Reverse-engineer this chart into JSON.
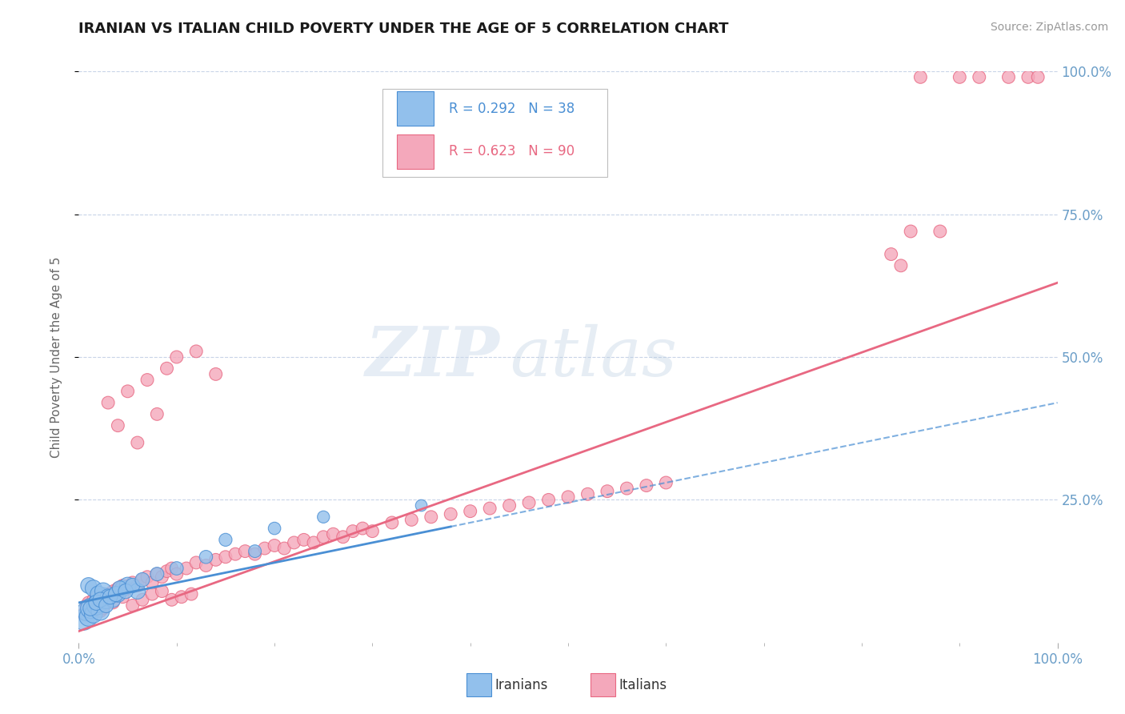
{
  "title": "IRANIAN VS ITALIAN CHILD POVERTY UNDER THE AGE OF 5 CORRELATION CHART",
  "source": "Source: ZipAtlas.com",
  "ylabel": "Child Poverty Under the Age of 5",
  "xlim": [
    0,
    1
  ],
  "ylim": [
    0,
    1
  ],
  "iranian_color": "#92C0EC",
  "italian_color": "#F4A8BB",
  "trendline_iranian_color": "#4A8FD4",
  "trendline_italian_color": "#E86882",
  "r_iranian": 0.292,
  "n_iranian": 38,
  "r_italian": 0.623,
  "n_italian": 90,
  "background_color": "#ffffff",
  "grid_color": "#c8d4e8",
  "tick_color": "#6B9EC8",
  "iranian_x": [
    0.005,
    0.008,
    0.01,
    0.012,
    0.015,
    0.018,
    0.02,
    0.022,
    0.025,
    0.028,
    0.01,
    0.015,
    0.02,
    0.025,
    0.03,
    0.035,
    0.04,
    0.045,
    0.05,
    0.06,
    0.012,
    0.018,
    0.022,
    0.028,
    0.032,
    0.038,
    0.042,
    0.048,
    0.055,
    0.065,
    0.08,
    0.1,
    0.13,
    0.15,
    0.18,
    0.2,
    0.25,
    0.35
  ],
  "iranian_y": [
    0.04,
    0.055,
    0.045,
    0.06,
    0.05,
    0.065,
    0.07,
    0.055,
    0.08,
    0.075,
    0.1,
    0.095,
    0.085,
    0.09,
    0.08,
    0.075,
    0.085,
    0.095,
    0.1,
    0.09,
    0.06,
    0.07,
    0.075,
    0.065,
    0.08,
    0.085,
    0.095,
    0.09,
    0.1,
    0.11,
    0.12,
    0.13,
    0.15,
    0.18,
    0.16,
    0.2,
    0.22,
    0.24
  ],
  "iranian_size": [
    350,
    300,
    280,
    320,
    260,
    290,
    310,
    270,
    280,
    260,
    200,
    220,
    210,
    230,
    200,
    190,
    210,
    200,
    220,
    200,
    180,
    190,
    180,
    170,
    175,
    185,
    180,
    175,
    170,
    165,
    150,
    145,
    140,
    135,
    130,
    125,
    120,
    110
  ],
  "italian_x": [
    0.005,
    0.008,
    0.01,
    0.012,
    0.015,
    0.018,
    0.02,
    0.022,
    0.025,
    0.028,
    0.03,
    0.035,
    0.04,
    0.045,
    0.05,
    0.055,
    0.06,
    0.065,
    0.07,
    0.075,
    0.08,
    0.085,
    0.09,
    0.095,
    0.1,
    0.11,
    0.12,
    0.13,
    0.14,
    0.15,
    0.16,
    0.17,
    0.18,
    0.19,
    0.2,
    0.21,
    0.22,
    0.23,
    0.24,
    0.25,
    0.26,
    0.27,
    0.28,
    0.29,
    0.3,
    0.32,
    0.34,
    0.36,
    0.38,
    0.4,
    0.42,
    0.44,
    0.46,
    0.48,
    0.5,
    0.52,
    0.54,
    0.56,
    0.58,
    0.6,
    0.03,
    0.04,
    0.05,
    0.06,
    0.07,
    0.08,
    0.09,
    0.1,
    0.12,
    0.14,
    0.025,
    0.035,
    0.045,
    0.055,
    0.065,
    0.075,
    0.085,
    0.095,
    0.105,
    0.115,
    0.86,
    0.9,
    0.92,
    0.95,
    0.97,
    0.98,
    0.85,
    0.88,
    0.84,
    0.83
  ],
  "italian_y": [
    0.05,
    0.065,
    0.07,
    0.06,
    0.075,
    0.08,
    0.065,
    0.055,
    0.08,
    0.07,
    0.085,
    0.09,
    0.095,
    0.1,
    0.095,
    0.105,
    0.1,
    0.11,
    0.115,
    0.105,
    0.12,
    0.115,
    0.125,
    0.13,
    0.12,
    0.13,
    0.14,
    0.135,
    0.145,
    0.15,
    0.155,
    0.16,
    0.155,
    0.165,
    0.17,
    0.165,
    0.175,
    0.18,
    0.175,
    0.185,
    0.19,
    0.185,
    0.195,
    0.2,
    0.195,
    0.21,
    0.215,
    0.22,
    0.225,
    0.23,
    0.235,
    0.24,
    0.245,
    0.25,
    0.255,
    0.26,
    0.265,
    0.27,
    0.275,
    0.28,
    0.42,
    0.38,
    0.44,
    0.35,
    0.46,
    0.4,
    0.48,
    0.5,
    0.51,
    0.47,
    0.06,
    0.07,
    0.08,
    0.065,
    0.075,
    0.085,
    0.09,
    0.075,
    0.08,
    0.085,
    0.99,
    0.99,
    0.99,
    0.99,
    0.99,
    0.99,
    0.72,
    0.72,
    0.66,
    0.68
  ],
  "italian_size": [
    130,
    130,
    130,
    130,
    130,
    130,
    130,
    130,
    130,
    130,
    130,
    130,
    130,
    130,
    130,
    130,
    130,
    130,
    130,
    130,
    130,
    130,
    130,
    130,
    130,
    130,
    130,
    130,
    130,
    130,
    130,
    130,
    130,
    130,
    130,
    130,
    130,
    130,
    130,
    130,
    130,
    130,
    130,
    130,
    130,
    130,
    130,
    130,
    130,
    130,
    130,
    130,
    130,
    130,
    130,
    130,
    130,
    130,
    130,
    130,
    130,
    130,
    130,
    130,
    130,
    130,
    130,
    130,
    130,
    130,
    130,
    130,
    130,
    130,
    130,
    130,
    130,
    130,
    130,
    130,
    130,
    130,
    130,
    130,
    130,
    130,
    130,
    130,
    130,
    130
  ],
  "iranian_trend_x0": 0.0,
  "iranian_trend_y0": 0.07,
  "iranian_trend_x1": 1.0,
  "iranian_trend_y1": 0.42,
  "italian_trend_x0": 0.0,
  "italian_trend_y0": 0.02,
  "italian_trend_x1": 1.0,
  "italian_trend_y1": 0.63
}
